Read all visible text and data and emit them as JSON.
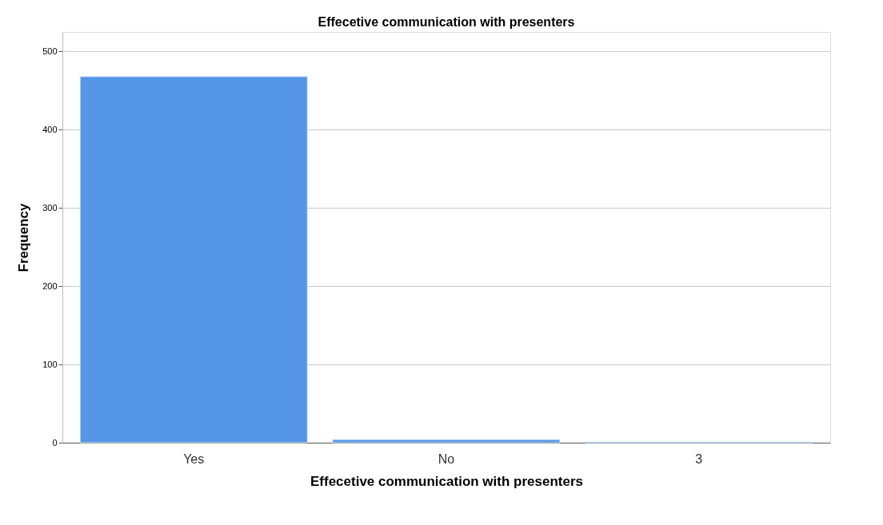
{
  "chart_data": {
    "type": "bar",
    "title": "Effecetive communication with presenters",
    "xlabel": "Effecetive communication with presenters",
    "ylabel": "Frequency",
    "categories": [
      "Yes",
      "No",
      "3"
    ],
    "values": [
      468,
      4,
      1
    ],
    "color": "#5596e6",
    "ylim": [
      0,
      525
    ],
    "yticks": [
      0,
      100,
      200,
      300,
      400,
      500
    ],
    "grid": "y"
  }
}
